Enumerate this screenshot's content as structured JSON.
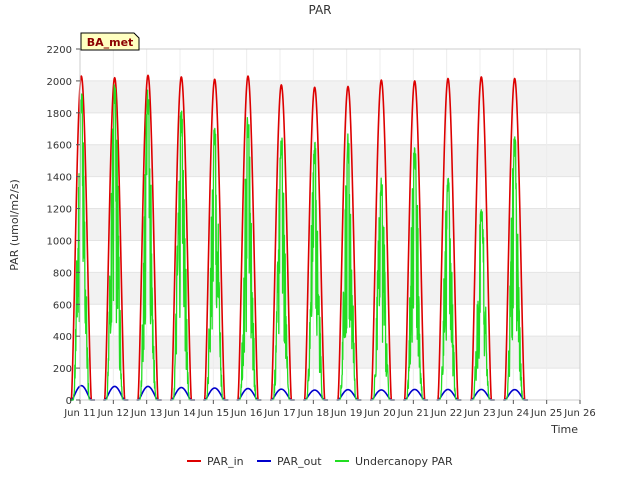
{
  "chart_data": {
    "type": "line",
    "title": "PAR",
    "xlabel": "Time",
    "ylabel": "PAR (umol/m2/s)",
    "ylim": [
      0,
      2200
    ],
    "xlim": [
      11,
      26
    ],
    "yticks": [
      0,
      200,
      400,
      600,
      800,
      1000,
      1200,
      1400,
      1600,
      1800,
      2000,
      2200
    ],
    "xticks": [
      {
        "value": 11,
        "label": "Jun 11"
      },
      {
        "value": 12,
        "label": "Jun 12"
      },
      {
        "value": 13,
        "label": "Jun 13"
      },
      {
        "value": 14,
        "label": "Jun 14"
      },
      {
        "value": 15,
        "label": "Jun 15"
      },
      {
        "value": 16,
        "label": "Jun 16"
      },
      {
        "value": 17,
        "label": "Jun 17"
      },
      {
        "value": 18,
        "label": "Jun 18"
      },
      {
        "value": 19,
        "label": "Jun 19"
      },
      {
        "value": 20,
        "label": "Jun 20"
      },
      {
        "value": 21,
        "label": "Jun 21"
      },
      {
        "value": 22,
        "label": "Jun 22"
      },
      {
        "value": 23,
        "label": "Jun 23"
      },
      {
        "value": 24,
        "label": "Jun 24"
      },
      {
        "value": 25,
        "label": "Jun 25"
      },
      {
        "value": 26,
        "label": "Jun 26"
      }
    ],
    "grid": true,
    "annotation": "BA_met",
    "legend_position": "bottom",
    "days": [
      11,
      12,
      13,
      14,
      15,
      16,
      17,
      18,
      19,
      20,
      21,
      22,
      23,
      24
    ],
    "series": [
      {
        "name": "PAR_in",
        "color": "#dd0000",
        "daily_peak": [
          2030,
          2020,
          2035,
          2025,
          2010,
          2030,
          1975,
          1960,
          1965,
          2005,
          2000,
          2015,
          2025,
          2015
        ]
      },
      {
        "name": "PAR_out",
        "color": "#0000cc",
        "daily_peak": [
          90,
          85,
          85,
          78,
          75,
          72,
          68,
          62,
          65,
          63,
          66,
          66,
          66,
          65
        ]
      },
      {
        "name": "Undercanopy PAR",
        "color": "#22dd22",
        "daily_peak": [
          2000,
          1990,
          1970,
          1840,
          1740,
          1800,
          1690,
          1640,
          1670,
          1400,
          1600,
          1410,
          1220,
          1670
        ]
      }
    ]
  }
}
